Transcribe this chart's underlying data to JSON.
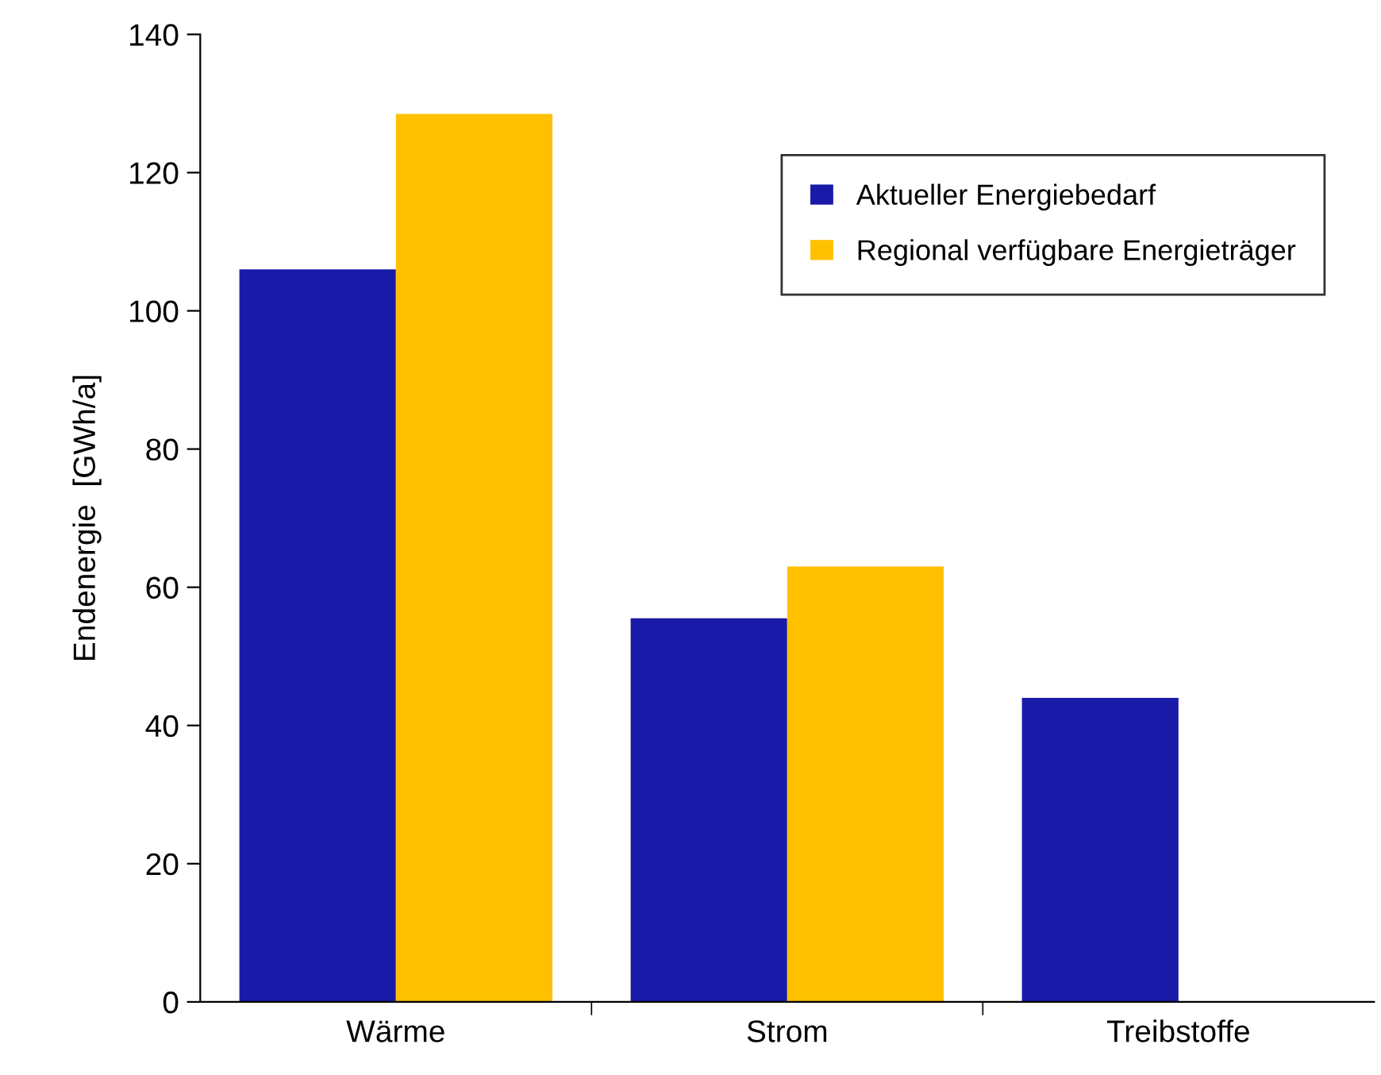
{
  "chart_data": {
    "type": "bar",
    "ylabel": "Endenergie  [GWh/a]",
    "categories": [
      "Wärme",
      "Strom",
      "Treibstoffe"
    ],
    "series": [
      {
        "name": "Aktueller Energiebedarf",
        "color": "#1a1aa8",
        "values": [
          106,
          55.5,
          44
        ]
      },
      {
        "name": "Regional verfügbare Energieträger",
        "color": "#ffc000",
        "values": [
          128.5,
          63,
          null
        ]
      }
    ],
    "ylim": [
      0,
      140
    ],
    "yticks": [
      0,
      20,
      40,
      60,
      80,
      100,
      120,
      140
    ],
    "grid": false,
    "legend": "top right"
  }
}
